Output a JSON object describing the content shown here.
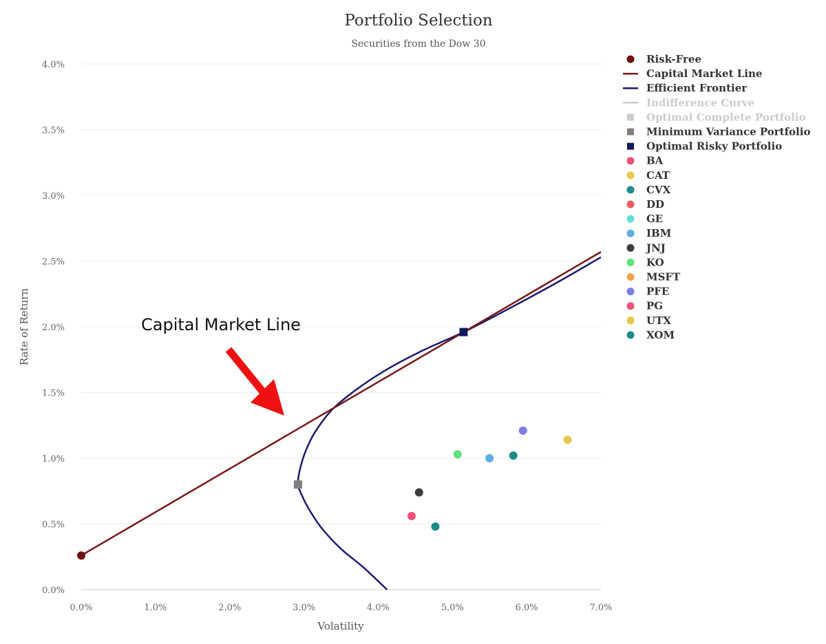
{
  "chart_data": {
    "type": "scatter",
    "title": "Portfolio Selection",
    "subtitle": "Securities from the Dow 30",
    "xlabel": "Volatility",
    "ylabel": "Rate of Return",
    "xlim": [
      0,
      7
    ],
    "ylim": [
      0,
      4
    ],
    "x_ticks": [
      "0.0%",
      "1.0%",
      "2.0%",
      "3.0%",
      "4.0%",
      "5.0%",
      "6.0%",
      "7.0%"
    ],
    "y_ticks": [
      "0.0%",
      "0.5%",
      "1.0%",
      "1.5%",
      "2.0%",
      "2.5%",
      "3.0%",
      "3.5%",
      "4.0%"
    ],
    "grid": "horizontal",
    "legend_position": "right",
    "risk_free": {
      "name": "Risk-Free",
      "x": 0.0,
      "y": 0.26,
      "color": "#6b0f0f"
    },
    "capital_market_line": {
      "name": "Capital Market Line",
      "color": "#7a1616",
      "points": [
        [
          0.0,
          0.26
        ],
        [
          7.0,
          2.57
        ]
      ]
    },
    "efficient_frontier": {
      "name": "Efficient Frontier",
      "color": "#1a1a6e",
      "points": [
        [
          4.12,
          0.0
        ],
        [
          3.8,
          0.17
        ],
        [
          3.5,
          0.31
        ],
        [
          3.25,
          0.46
        ],
        [
          3.08,
          0.6
        ],
        [
          2.97,
          0.72
        ],
        [
          2.92,
          0.8
        ],
        [
          2.94,
          0.9
        ],
        [
          3.02,
          1.05
        ],
        [
          3.15,
          1.2
        ],
        [
          3.38,
          1.37
        ],
        [
          3.7,
          1.52
        ],
        [
          4.1,
          1.67
        ],
        [
          4.6,
          1.82
        ],
        [
          5.15,
          1.96
        ],
        [
          5.8,
          2.15
        ],
        [
          6.45,
          2.35
        ],
        [
          7.0,
          2.53
        ]
      ]
    },
    "indifference_curve": {
      "name": "Indifference Curve",
      "color": "#cccccc"
    },
    "optimal_complete_portfolio": {
      "name": "Optimal Complete Portfolio",
      "color": "#cccccc"
    },
    "minimum_variance_portfolio": {
      "name": "Minimum Variance Portfolio",
      "x": 2.92,
      "y": 0.8,
      "color": "#7f7f7f"
    },
    "optimal_risky_portfolio": {
      "name": "Optimal Risky Portfolio",
      "x": 5.15,
      "y": 1.96,
      "color": "#0d1a5e"
    },
    "securities": [
      {
        "name": "BA",
        "color": "#f0527a",
        "x": null,
        "y": null
      },
      {
        "name": "CAT",
        "color": "#e8c84a",
        "x": 6.55,
        "y": 1.14
      },
      {
        "name": "CVX",
        "color": "#1a8c8c",
        "x": 5.82,
        "y": 1.02
      },
      {
        "name": "DD",
        "color": "#f05a5a",
        "x": null,
        "y": null
      },
      {
        "name": "GE",
        "color": "#5ee0e0",
        "x": null,
        "y": null
      },
      {
        "name": "IBM",
        "color": "#5aaee8",
        "x": 5.5,
        "y": 1.0
      },
      {
        "name": "JNJ",
        "color": "#3c3c3c",
        "x": 4.55,
        "y": 0.74
      },
      {
        "name": "KO",
        "color": "#5ee07a",
        "x": 5.07,
        "y": 1.03
      },
      {
        "name": "MSFT",
        "color": "#f5a050",
        "x": null,
        "y": null
      },
      {
        "name": "PFE",
        "color": "#7b7de8",
        "x": 5.95,
        "y": 1.21
      },
      {
        "name": "PG",
        "color": "#f0527a",
        "x": 4.45,
        "y": 0.56
      },
      {
        "name": "UTX",
        "color": "#e8c84a",
        "x": null,
        "y": null
      },
      {
        "name": "XOM",
        "color": "#1a8c8c",
        "x": 4.77,
        "y": 0.48
      }
    ],
    "annotation": {
      "text": "Capital Market Line",
      "color": "#ee1111"
    }
  }
}
